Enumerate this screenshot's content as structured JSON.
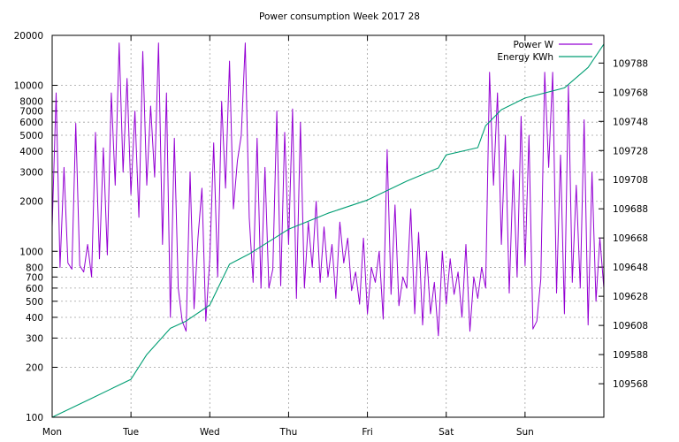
{
  "chart_data": {
    "type": "line",
    "title": "Power consumption Week 2017 28",
    "xlabel": "",
    "ylabel": "",
    "x_ticks": [
      "Mon",
      "Tue",
      "Wed",
      "Thu",
      "Fri",
      "Sat",
      "Sun"
    ],
    "y_scale": "log",
    "ylim": [
      100,
      20000
    ],
    "y_ticks": [
      100,
      200,
      300,
      400,
      500,
      600,
      700,
      800,
      1000,
      2000,
      3000,
      4000,
      5000,
      6000,
      7000,
      8000,
      10000,
      20000
    ],
    "y2_scale": "linear",
    "y2lim": [
      109545,
      109807
    ],
    "y2_ticks": [
      109568,
      109588,
      109608,
      109628,
      109648,
      109668,
      109688,
      109708,
      109728,
      109748,
      109768,
      109788
    ],
    "grid": true,
    "legend_position": "top-right",
    "series": [
      {
        "name": "Power W",
        "axis": "y",
        "color": "#9400d3",
        "x": [
          0,
          0.05,
          0.1,
          0.15,
          0.2,
          0.25,
          0.3,
          0.35,
          0.4,
          0.45,
          0.5,
          0.55,
          0.6,
          0.65,
          0.7,
          0.75,
          0.8,
          0.85,
          0.9,
          0.95,
          1,
          1.05,
          1.1,
          1.15,
          1.2,
          1.25,
          1.3,
          1.35,
          1.4,
          1.45,
          1.5,
          1.55,
          1.6,
          1.65,
          1.7,
          1.75,
          1.8,
          1.85,
          1.9,
          1.95,
          2,
          2.05,
          2.1,
          2.15,
          2.2,
          2.25,
          2.3,
          2.35,
          2.4,
          2.45,
          2.5,
          2.55,
          2.6,
          2.65,
          2.7,
          2.75,
          2.8,
          2.85,
          2.9,
          2.95,
          3,
          3.05,
          3.1,
          3.15,
          3.2,
          3.25,
          3.3,
          3.35,
          3.4,
          3.45,
          3.5,
          3.55,
          3.6,
          3.65,
          3.7,
          3.75,
          3.8,
          3.85,
          3.9,
          3.95,
          4,
          4.05,
          4.1,
          4.15,
          4.2,
          4.25,
          4.3,
          4.35,
          4.4,
          4.45,
          4.5,
          4.55,
          4.6,
          4.65,
          4.7,
          4.75,
          4.8,
          4.85,
          4.9,
          4.95,
          5,
          5.05,
          5.1,
          5.15,
          5.2,
          5.25,
          5.3,
          5.35,
          5.4,
          5.45,
          5.5,
          5.55,
          5.6,
          5.65,
          5.7,
          5.75,
          5.8,
          5.85,
          5.9,
          5.95,
          6,
          6.05,
          6.1,
          6.15,
          6.2,
          6.25,
          6.3,
          6.35,
          6.4,
          6.45,
          6.5,
          6.55,
          6.6,
          6.65,
          6.7,
          6.75,
          6.8,
          6.85,
          6.9,
          6.95,
          7
        ],
        "values": [
          1400,
          9000,
          800,
          3200,
          850,
          780,
          5900,
          820,
          750,
          1100,
          700,
          5200,
          900,
          4200,
          950,
          9000,
          2500,
          18000,
          3000,
          11000,
          2200,
          7000,
          1600,
          16000,
          2500,
          7500,
          2800,
          18000,
          1100,
          9000,
          400,
          4800,
          600,
          380,
          330,
          3000,
          450,
          1200,
          2400,
          380,
          900,
          4500,
          700,
          8000,
          2400,
          14000,
          1800,
          3500,
          5000,
          18000,
          1600,
          650,
          4800,
          600,
          3200,
          600,
          780,
          7000,
          620,
          5200,
          1100,
          7200,
          520,
          6000,
          600,
          1500,
          800,
          2000,
          650,
          1400,
          700,
          1100,
          520,
          1500,
          850,
          1200,
          580,
          750,
          480,
          1200,
          420,
          800,
          650,
          1000,
          390,
          4100,
          550,
          1900,
          470,
          700,
          600,
          1800,
          420,
          1300,
          360,
          1000,
          420,
          650,
          310,
          1000,
          480,
          900,
          550,
          750,
          400,
          1100,
          330,
          700,
          520,
          800,
          600,
          12000,
          2500,
          9000,
          1100,
          5000,
          560,
          3100,
          700,
          6500,
          820,
          5000,
          340,
          380,
          680,
          12000,
          3200,
          12000,
          560,
          3800,
          420,
          10000,
          650,
          2500,
          600,
          6200,
          360,
          3000,
          500,
          1200,
          600
        ],
        "values_note": ""
      },
      {
        "name": "Energy KWh",
        "axis": "y2",
        "color": "#009e73",
        "x": [
          0,
          0.5,
          1,
          1.2,
          1.5,
          1.7,
          2,
          2.25,
          2.5,
          3,
          3.5,
          4,
          4.5,
          4.9,
          5,
          5.4,
          5.5,
          5.7,
          6,
          6.5,
          6.8,
          7
        ],
        "values": [
          109545,
          109558,
          109571,
          109588,
          109606,
          109611,
          109622,
          109650,
          109657,
          109674,
          109685,
          109694,
          109707,
          109716,
          109725,
          109730,
          109745,
          109756,
          109764,
          109771,
          109785,
          109801
        ]
      }
    ]
  },
  "legend": {
    "power_label": "Power W",
    "energy_label": "Energy KWh"
  }
}
